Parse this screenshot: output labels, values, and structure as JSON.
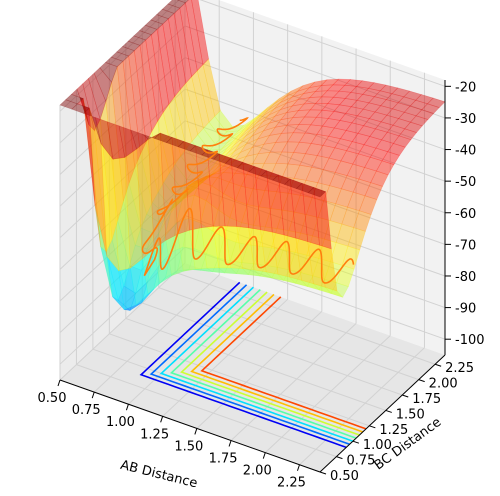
{
  "chart_data": {
    "type": "surface3d",
    "xlabel": "AB Distance",
    "ylabel": "BC Distance",
    "zlabel": "",
    "x_ticks": [
      "0.50",
      "0.75",
      "1.00",
      "1.25",
      "1.50",
      "1.75",
      "2.00",
      "2.25"
    ],
    "y_ticks": [
      "0.50",
      "0.75",
      "1.00",
      "1.25",
      "1.50",
      "1.75",
      "2.00",
      "2.25"
    ],
    "z_ticks": [
      "-20",
      "-30",
      "-40",
      "-50",
      "-60",
      "-70",
      "-80",
      "-90",
      "-100"
    ],
    "xlim": [
      0.5,
      2.4
    ],
    "ylim": [
      0.5,
      2.4
    ],
    "zlim": [
      -105,
      -18
    ],
    "surface": {
      "colormap": "jet",
      "alpha": 0.45,
      "plateau": -24,
      "minimum": -104,
      "contours_on_floor": true
    },
    "trajectory": {
      "color": "#ff7f0e",
      "description_values": "orange oscillating path from AB~0.9,BC~2.4 descending into valley and out along AB"
    },
    "grid": true,
    "colors": {
      "pane_left": "#ececec",
      "pane_right": "#f2f2f2",
      "pane_floor": "#e6e6e6",
      "grid": "#d2d2d2",
      "trajectory": "#ff7f0e"
    }
  }
}
